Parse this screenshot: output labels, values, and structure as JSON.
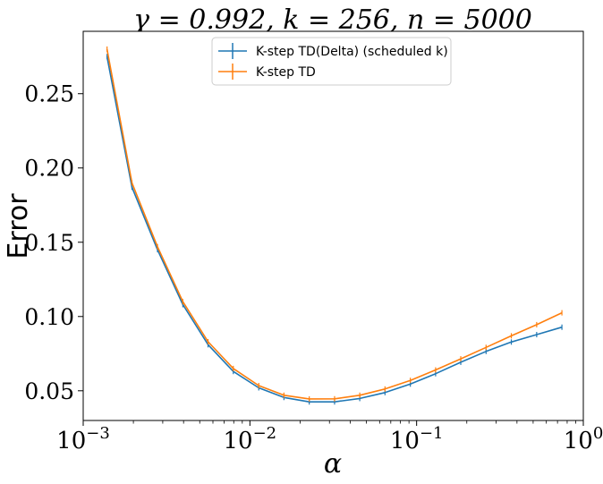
{
  "chart_data": {
    "type": "line",
    "title": "γ = 0.992, k = 256, n = 5000",
    "xlabel": "α",
    "ylabel": "Error",
    "xscale": "log",
    "xlim": [
      0.001,
      1
    ],
    "ylim": [
      0.03,
      0.292
    ],
    "x_ticks": [
      0.001,
      0.01,
      0.1,
      1
    ],
    "x_tick_labels": [
      {
        "base": "10",
        "exp": "−3"
      },
      {
        "base": "10",
        "exp": "−2"
      },
      {
        "base": "10",
        "exp": "−1"
      },
      {
        "base": "10",
        "exp": "0"
      }
    ],
    "y_ticks": [
      0.05,
      0.1,
      0.15,
      0.2,
      0.25
    ],
    "y_tick_labels": [
      "0.05",
      "0.10",
      "0.15",
      "0.20",
      "0.25"
    ],
    "grid": false,
    "legend_position": "top-center",
    "x": [
      0.00139,
      0.00196,
      0.00279,
      0.00396,
      0.00561,
      0.00795,
      0.0113,
      0.016,
      0.0227,
      0.0322,
      0.0456,
      0.0646,
      0.0917,
      0.13,
      0.184,
      0.261,
      0.37,
      0.525,
      0.744
    ],
    "series": [
      {
        "name": "K-step TD(Delta) (scheduled k)",
        "color": "#1f77b4",
        "values": [
          0.275,
          0.187,
          0.145,
          0.108,
          0.081,
          0.063,
          0.052,
          0.0455,
          0.0425,
          0.0425,
          0.0448,
          0.0488,
          0.0545,
          0.0615,
          0.0692,
          0.0765,
          0.0828,
          0.0878,
          0.0928
        ]
      },
      {
        "name": "K-step TD",
        "color": "#ff7f0e",
        "values": [
          0.28,
          0.19,
          0.147,
          0.11,
          0.083,
          0.065,
          0.0535,
          0.047,
          0.0445,
          0.0446,
          0.047,
          0.0512,
          0.057,
          0.064,
          0.0715,
          0.0792,
          0.087,
          0.0945,
          0.1025
        ]
      }
    ]
  }
}
